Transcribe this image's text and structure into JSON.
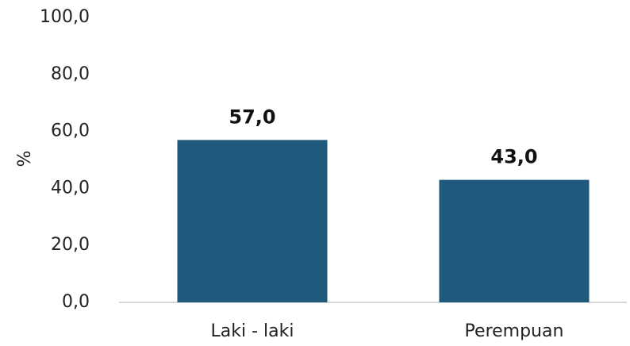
{
  "chart_data": {
    "type": "bar",
    "y_label": "%",
    "categories": [
      "Laki - laki",
      "Perempuan"
    ],
    "values": [
      57,
      43
    ],
    "value_labels": [
      "57,0",
      "43,0"
    ],
    "color": "#1f5a7c",
    "ylim": [
      0,
      100
    ],
    "yticks": [
      {
        "value": 0,
        "label": "0,0"
      },
      {
        "value": 20,
        "label": "20,0"
      },
      {
        "value": 40,
        "label": "40,0"
      },
      {
        "value": 60,
        "label": "60,0"
      },
      {
        "value": 80,
        "label": "80,0"
      },
      {
        "value": 100,
        "label": "100,0"
      }
    ],
    "grid": false
  }
}
